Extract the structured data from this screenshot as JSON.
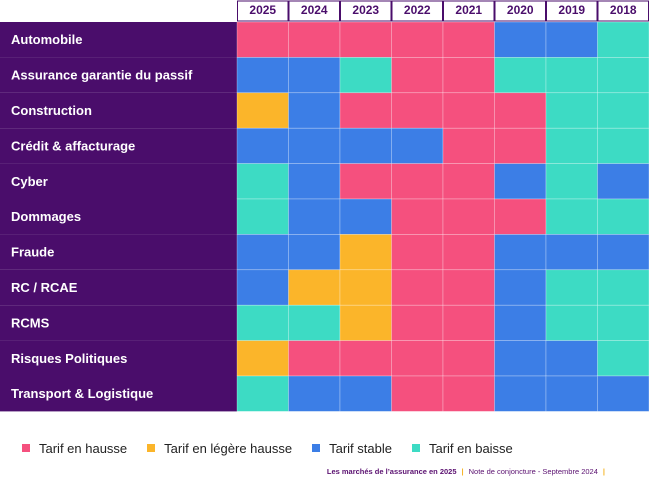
{
  "chart_data": {
    "type": "heatmap",
    "x": [
      "2025",
      "2024",
      "2023",
      "2022",
      "2021",
      "2020",
      "2019",
      "2018"
    ],
    "rows": [
      "Automobile",
      "Assurance garantie du passif",
      "Construction",
      "Crédit & affacturage",
      "Cyber",
      "Dommages",
      "Fraude",
      "RC / RCAE",
      "RCMS",
      "Risques Politiques",
      "Transport & Logistique"
    ],
    "categories": [
      {
        "key": "hausse",
        "label": "Tarif en hausse",
        "color": "#f5507e"
      },
      {
        "key": "legere",
        "label": "Tarif en légère hausse",
        "color": "#fbb52a"
      },
      {
        "key": "stable",
        "label": "Tarif stable",
        "color": "#3c7ee6"
      },
      {
        "key": "baisse",
        "label": "Tarif en baisse",
        "color": "#3ddbc4"
      }
    ],
    "values": [
      [
        "hausse",
        "hausse",
        "hausse",
        "hausse",
        "hausse",
        "stable",
        "stable",
        "baisse"
      ],
      [
        "stable",
        "stable",
        "baisse",
        "hausse",
        "hausse",
        "baisse",
        "baisse",
        "baisse"
      ],
      [
        "legere",
        "stable",
        "hausse",
        "hausse",
        "hausse",
        "hausse",
        "baisse",
        "baisse"
      ],
      [
        "stable",
        "stable",
        "stable",
        "stable",
        "hausse",
        "hausse",
        "baisse",
        "baisse"
      ],
      [
        "baisse",
        "stable",
        "hausse",
        "hausse",
        "hausse",
        "stable",
        "baisse",
        "stable"
      ],
      [
        "baisse",
        "stable",
        "stable",
        "hausse",
        "hausse",
        "hausse",
        "baisse",
        "baisse"
      ],
      [
        "stable",
        "stable",
        "legere",
        "hausse",
        "hausse",
        "stable",
        "stable",
        "stable"
      ],
      [
        "stable",
        "legere",
        "legere",
        "hausse",
        "hausse",
        "stable",
        "baisse",
        "baisse"
      ],
      [
        "baisse",
        "baisse",
        "legere",
        "hausse",
        "hausse",
        "stable",
        "baisse",
        "baisse"
      ],
      [
        "legere",
        "hausse",
        "hausse",
        "hausse",
        "hausse",
        "stable",
        "stable",
        "baisse"
      ],
      [
        "baisse",
        "stable",
        "stable",
        "hausse",
        "hausse",
        "stable",
        "stable",
        "stable"
      ]
    ],
    "row_label_color": "#4a0d6b",
    "header_color": "#4a0d6b"
  },
  "legend": [
    {
      "label": "Tarif en hausse",
      "color": "#f5507e"
    },
    {
      "label": "Tarif en légère hausse",
      "color": "#fbb52a"
    },
    {
      "label": "Tarif stable",
      "color": "#3c7ee6"
    },
    {
      "label": "Tarif en baisse",
      "color": "#3ddbc4"
    }
  ],
  "footer": {
    "publication": "Les marchés de l’assurance en 2025",
    "note": "Note de conjoncture - Septembre 2024"
  }
}
